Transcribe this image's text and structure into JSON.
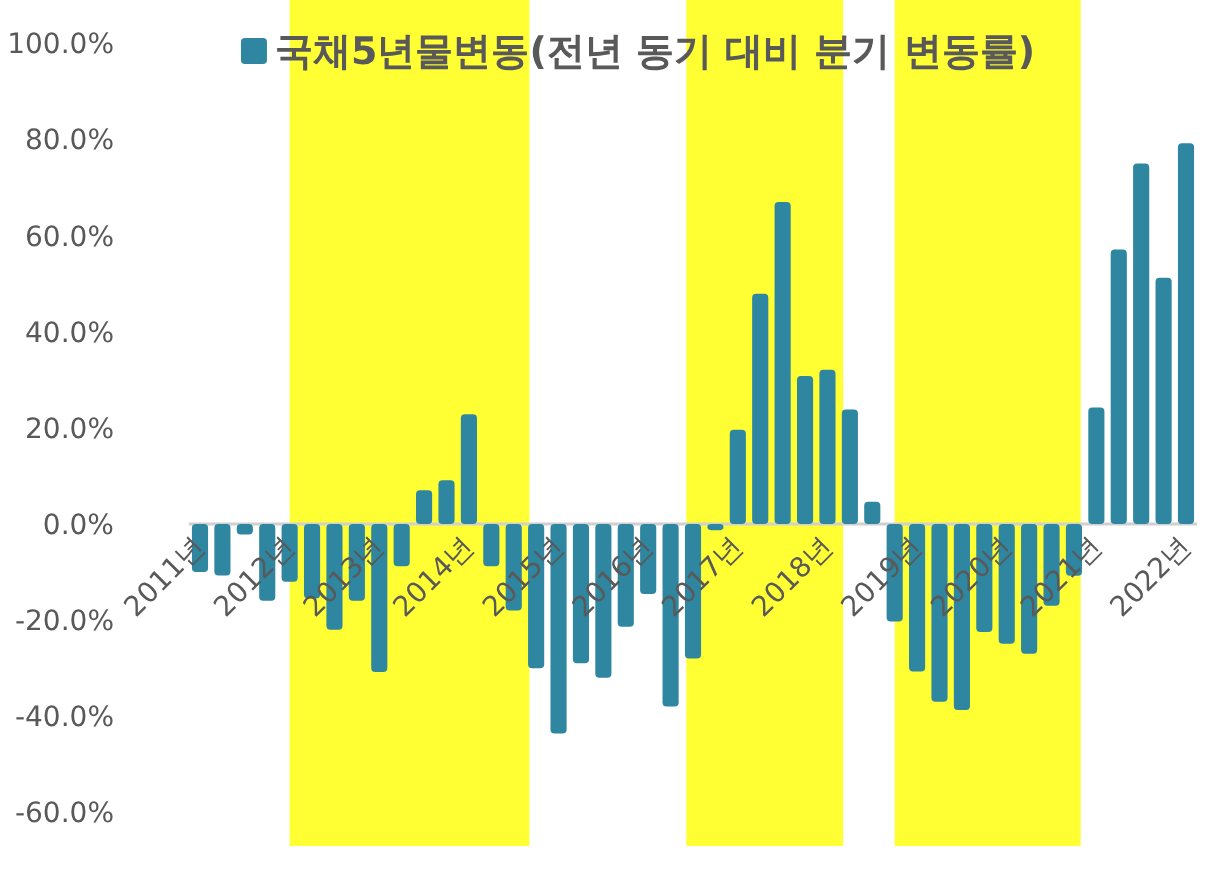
{
  "chart_data": {
    "type": "bar",
    "categories": [
      "2011년",
      null,
      null,
      null,
      "2012년",
      null,
      null,
      null,
      "2013년",
      null,
      null,
      null,
      "2014년",
      null,
      null,
      null,
      "2015년",
      null,
      null,
      null,
      "2016년",
      null,
      null,
      null,
      "2017년",
      null,
      null,
      null,
      "2018년",
      null,
      null,
      null,
      "2019년",
      null,
      null,
      null,
      "2020년",
      null,
      null,
      null,
      "2021년",
      null,
      null,
      null,
      "2022년"
    ],
    "series": [
      {
        "name": "국채5년물변동(전년 동기 대비 분기 변동률)",
        "color": "#2e86a0",
        "values": [
          -10,
          -10.7,
          -2.2,
          -16,
          -12,
          -15.5,
          -22,
          -16,
          -30.8,
          -8.8,
          7,
          9.1,
          22.8,
          -8.8,
          -18,
          -30,
          -43.6,
          -29,
          -32,
          -21.4,
          -14.6,
          -38,
          -28,
          -1.3,
          19.6,
          47.9,
          67,
          30.8,
          32.1,
          23.8,
          4.6,
          -20.3,
          -30.7,
          -37,
          -38.7,
          -22.5,
          -24.9,
          -27,
          -17,
          -10.8,
          24.2,
          57.1,
          75,
          51.2,
          79.2
        ]
      }
    ],
    "ylim": [
      -67,
      109
    ],
    "yticks": [
      {
        "value": -60,
        "label": "-60.0%"
      },
      {
        "value": -40,
        "label": "-40.0%"
      },
      {
        "value": -20,
        "label": "-20.0%"
      },
      {
        "value": 0,
        "label": "0.0%"
      },
      {
        "value": 20,
        "label": "20.0%"
      },
      {
        "value": 40,
        "label": "40.0%"
      },
      {
        "value": 60,
        "label": "60.0%"
      },
      {
        "value": 80,
        "label": "80.0%"
      },
      {
        "value": 100,
        "label": "100.0%"
      }
    ],
    "legend": "top",
    "grid": false
  }
}
